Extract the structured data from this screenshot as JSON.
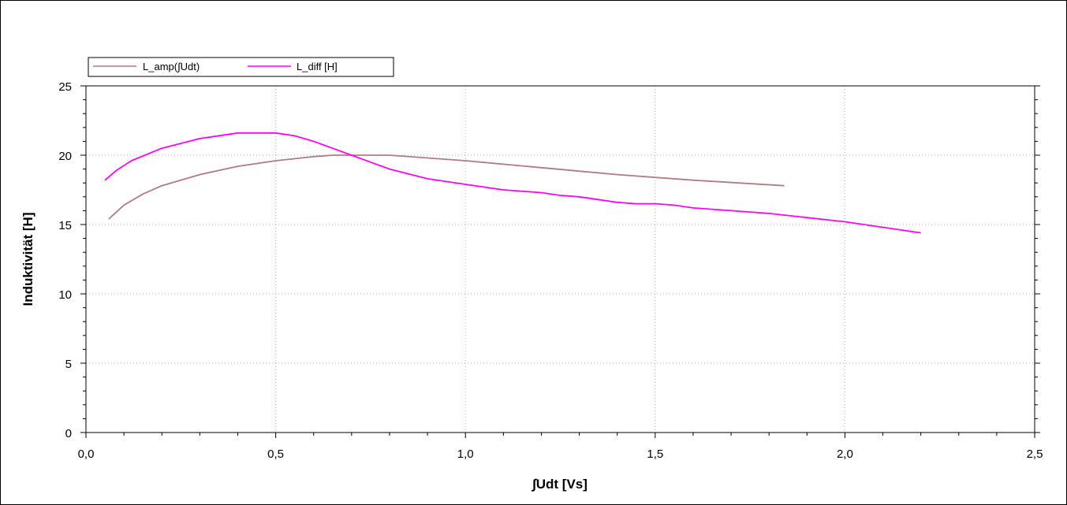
{
  "chart_data": {
    "type": "line",
    "title": "",
    "xlabel": "∫Udt [Vs]",
    "ylabel": "Induktivität [H]",
    "xlim": [
      0.0,
      2.5
    ],
    "ylim": [
      0,
      25
    ],
    "xticks": [
      0.0,
      0.5,
      1.0,
      1.5,
      2.0,
      2.5
    ],
    "xtick_labels": [
      "0,0",
      "0,5",
      "1,0",
      "1,5",
      "2,0",
      "2,5"
    ],
    "yticks": [
      0,
      5,
      10,
      15,
      20,
      25
    ],
    "ytick_labels": [
      "0",
      "5",
      "10",
      "15",
      "20",
      "25"
    ],
    "grid": true,
    "legend_position": "top-left",
    "series": [
      {
        "name": "L_amp(∫Udt)",
        "color": "#b07a86",
        "x": [
          0.06,
          0.1,
          0.15,
          0.2,
          0.3,
          0.4,
          0.5,
          0.6,
          0.65,
          0.7,
          0.8,
          1.0,
          1.2,
          1.4,
          1.6,
          1.84
        ],
        "y": [
          15.4,
          16.4,
          17.2,
          17.8,
          18.6,
          19.2,
          19.6,
          19.9,
          20.0,
          20.0,
          20.0,
          19.6,
          19.1,
          18.6,
          18.2,
          17.8
        ]
      },
      {
        "name": "L_diff [H]",
        "color": "#ff00ff",
        "x": [
          0.05,
          0.08,
          0.12,
          0.2,
          0.3,
          0.4,
          0.5,
          0.55,
          0.6,
          0.65,
          0.7,
          0.75,
          0.8,
          0.9,
          1.0,
          1.1,
          1.2,
          1.25,
          1.3,
          1.35,
          1.4,
          1.45,
          1.5,
          1.55,
          1.6,
          1.7,
          1.8,
          1.9,
          2.0,
          2.1,
          2.2
        ],
        "y": [
          18.2,
          18.9,
          19.6,
          20.5,
          21.2,
          21.6,
          21.6,
          21.4,
          21.0,
          20.5,
          20.0,
          19.5,
          19.0,
          18.3,
          17.9,
          17.5,
          17.3,
          17.1,
          17.0,
          16.8,
          16.6,
          16.5,
          16.5,
          16.4,
          16.2,
          16.0,
          15.8,
          15.5,
          15.2,
          14.8,
          14.4
        ]
      }
    ]
  }
}
